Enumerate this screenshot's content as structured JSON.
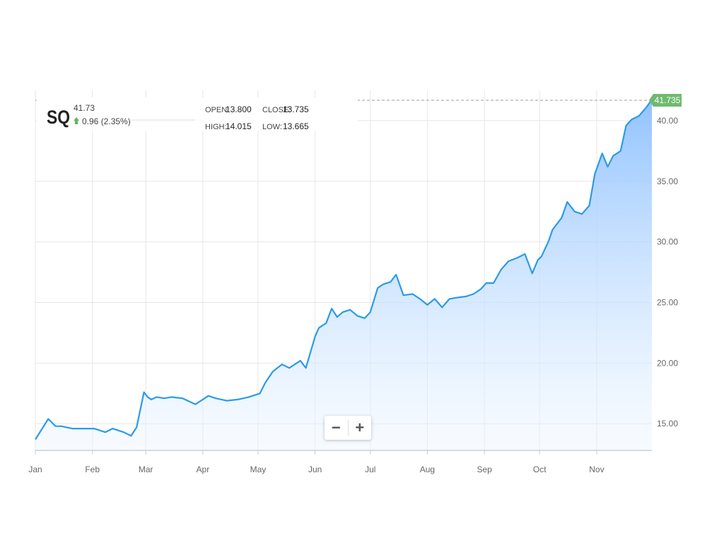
{
  "ticker": {
    "symbol": "SQ",
    "price": "41.73",
    "change": "0.96 (2.35%)",
    "up_color": "#5cb85c"
  },
  "ohlc": {
    "open_label": "OPEN:",
    "open": "13.800",
    "close_label": "CLOSE:",
    "close": "13.735",
    "high_label": "HIGH:",
    "high": "14.015",
    "low_label": "LOW:",
    "low": "13.665"
  },
  "last_price_badge": "41.735",
  "zoom": {
    "minus": "−",
    "plus": "+"
  },
  "chart_data": {
    "type": "area",
    "title": "",
    "xlabel": "",
    "ylabel": "",
    "x_ticks": [
      "Jan",
      "Feb",
      "Mar",
      "Apr",
      "May",
      "Jun",
      "Jul",
      "Aug",
      "Sep",
      "Oct",
      "Nov"
    ],
    "y_ticks": [
      "15.00",
      "20.00",
      "25.00",
      "30.00",
      "35.00",
      "40.00"
    ],
    "ylim": [
      12.8,
      42.5
    ],
    "grid": true,
    "line_color": "#2b9be8",
    "fill_color": "#8cc0ff",
    "series": [
      {
        "x": [
          "2016-01-01",
          "2016-01-08",
          "2016-01-12",
          "2016-01-15",
          "2016-01-21",
          "2016-01-26",
          "2016-02-02",
          "2016-02-08",
          "2016-02-12",
          "2016-02-18",
          "2016-02-22",
          "2016-02-25",
          "2016-02-29",
          "2016-03-02",
          "2016-03-04",
          "2016-03-07",
          "2016-03-11",
          "2016-03-15",
          "2016-03-21",
          "2016-03-28",
          "2016-04-04",
          "2016-04-08",
          "2016-04-14",
          "2016-04-20",
          "2016-04-26",
          "2016-05-02",
          "2016-05-05",
          "2016-05-09",
          "2016-05-14",
          "2016-05-18",
          "2016-05-24",
          "2016-05-27",
          "2016-06-01",
          "2016-06-03",
          "2016-06-07",
          "2016-06-10",
          "2016-06-13",
          "2016-06-16",
          "2016-06-20",
          "2016-06-24",
          "2016-06-28",
          "2016-07-01",
          "2016-07-05",
          "2016-07-08",
          "2016-07-12",
          "2016-07-15",
          "2016-07-19",
          "2016-07-24",
          "2016-07-28",
          "2016-08-01",
          "2016-08-05",
          "2016-08-09",
          "2016-08-13",
          "2016-08-17",
          "2016-08-22",
          "2016-08-26",
          "2016-08-30",
          "2016-09-02",
          "2016-09-06",
          "2016-09-10",
          "2016-09-14",
          "2016-09-19",
          "2016-09-23",
          "2016-09-27",
          "2016-09-30",
          "2016-10-02",
          "2016-10-06",
          "2016-10-08",
          "2016-10-13",
          "2016-10-16",
          "2016-10-20",
          "2016-10-24",
          "2016-10-28",
          "2016-10-31",
          "2016-11-04",
          "2016-11-07",
          "2016-11-10",
          "2016-11-14",
          "2016-11-17",
          "2016-11-20",
          "2016-11-24",
          "2016-11-28",
          "2016-12-01"
        ],
        "y": [
          13.7,
          15.4,
          14.8,
          14.8,
          14.6,
          14.6,
          14.6,
          14.3,
          14.6,
          14.3,
          14.0,
          14.7,
          17.6,
          17.2,
          17.0,
          17.2,
          17.1,
          17.2,
          17.1,
          16.6,
          17.3,
          17.1,
          16.9,
          17.0,
          17.2,
          17.5,
          18.4,
          19.3,
          19.9,
          19.6,
          20.2,
          19.6,
          22.2,
          22.9,
          23.3,
          24.5,
          23.8,
          24.2,
          24.4,
          23.9,
          23.7,
          24.2,
          26.2,
          26.5,
          26.7,
          27.3,
          25.6,
          25.7,
          25.3,
          24.8,
          25.3,
          24.6,
          25.3,
          25.4,
          25.5,
          25.7,
          26.1,
          26.6,
          26.6,
          27.7,
          28.4,
          28.7,
          29.0,
          27.4,
          28.5,
          28.8,
          30.1,
          31.0,
          32.0,
          33.3,
          32.5,
          32.3,
          33.0,
          35.6,
          37.3,
          36.2,
          37.1,
          37.5,
          39.6,
          40.1,
          40.4,
          41.1,
          41.735
        ]
      }
    ]
  }
}
